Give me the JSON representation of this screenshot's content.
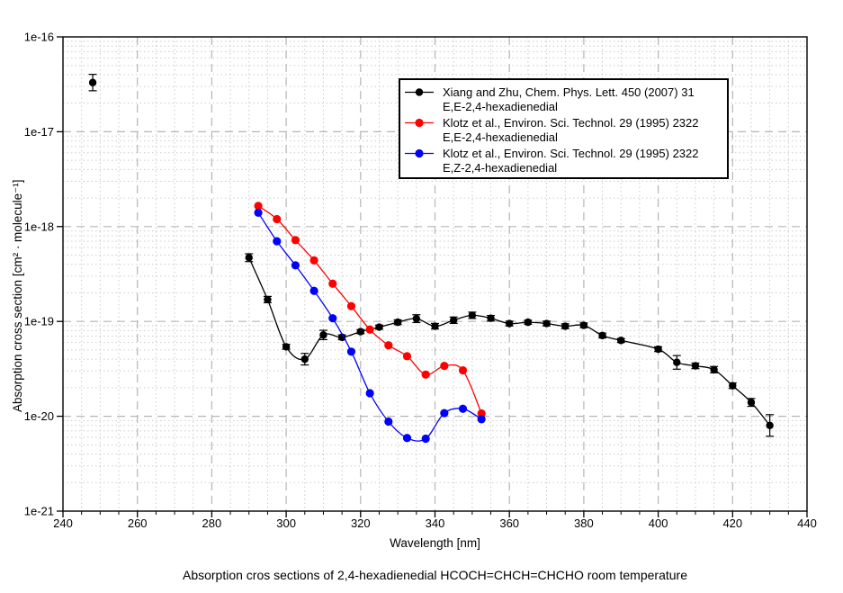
{
  "figure": {
    "title": "Absorption cros sections of 2,4-hexadienedial HCOCH=CHCH=CHCHO room temperature"
  },
  "chart_data": {
    "type": "line",
    "title": "Absorption cros sections of 2,4-hexadienedial HCOCH=CHCH=CHCHO room temperature",
    "xlabel": "Wavelength [nm]",
    "ylabel": "Absorption cross section [cm² · molecule⁻¹]",
    "x_axis": {
      "min": 240,
      "max": 440,
      "major_tick_step": 20,
      "minor_tick_step": 5,
      "tick_labels": [
        "240",
        "260",
        "280",
        "300",
        "320",
        "340",
        "360",
        "380",
        "400",
        "420",
        "440"
      ]
    },
    "y_axis": {
      "scale": "log",
      "min": 1e-21,
      "max": 1e-16,
      "tick_labels": [
        "1e-16",
        "1e-17",
        "1e-18",
        "1e-19",
        "1e-20",
        "1e-21"
      ]
    },
    "grid": {
      "major_color": "#b5b5b5",
      "minor_color": "#cccccc",
      "on": true
    },
    "frame_color": "#000000",
    "legend_position": "top-right-inside",
    "series": [
      {
        "name": "xiang-zhu-ee",
        "legend_line1": "Xiang and Zhu, Chem. Phys. Lett. 450 (2007) 31",
        "legend_line2": "E,E-2,4-hexadienedial",
        "color": "#000000",
        "marker": "circle",
        "marker_radius": 4.2,
        "line_start_index": 1,
        "x": [
          248,
          290,
          295,
          300,
          305,
          310,
          315,
          320,
          325,
          330,
          335,
          340,
          345,
          350,
          355,
          360,
          365,
          370,
          375,
          380,
          385,
          390,
          400,
          405,
          410,
          415,
          420,
          425,
          430
        ],
        "y": [
          3.3e-17,
          4.7e-19,
          1.7e-19,
          5.4e-20,
          4e-20,
          7.2e-20,
          6.8e-20,
          7.8e-20,
          8.7e-20,
          9.8e-20,
          1.07e-19,
          8.9e-20,
          1.03e-19,
          1.16e-19,
          1.08e-19,
          9.5e-20,
          9.8e-20,
          9.5e-20,
          8.9e-20,
          9.1e-20,
          7.1e-20,
          6.3e-20,
          5.1e-20,
          3.7e-20,
          3.4e-20,
          3.1e-20,
          2.1e-20,
          1.4e-20,
          8e-21
        ],
        "yerr_frac": [
          0.22,
          0.1,
          0.08,
          0.06,
          0.15,
          0.12,
          0.06,
          0.05,
          0.05,
          0.06,
          0.1,
          0.07,
          0.08,
          0.08,
          0.07,
          0.06,
          0.05,
          0.06,
          0.06,
          0.06,
          0.06,
          0.05,
          0.06,
          0.18,
          0.07,
          0.08,
          0.07,
          0.1,
          0.3
        ]
      },
      {
        "name": "klotz-ee",
        "legend_line1": "Klotz et al., Environ. Sci. Technol. 29 (1995) 2322",
        "legend_line2": "E,E-2,4-hexadienedial",
        "color": "#ff0000",
        "marker": "circle",
        "marker_radius": 4.6,
        "line_start_index": 0,
        "x": [
          292.5,
          297.5,
          302.5,
          307.5,
          312.5,
          317.5,
          322.5,
          327.5,
          332.5,
          337.5,
          342.5,
          347.5,
          352.5
        ],
        "y": [
          1.65e-18,
          1.2e-18,
          7.2e-19,
          4.4e-19,
          2.5e-19,
          1.45e-19,
          8.2e-20,
          5.6e-20,
          4.3e-20,
          2.75e-20,
          3.4e-20,
          3.05e-20,
          1.07e-20
        ]
      },
      {
        "name": "klotz-ez",
        "legend_line1": "Klotz et al., Environ. Sci. Technol. 29 (1995) 2322",
        "legend_line2": "E,Z-2,4-hexadienedial",
        "color": "#0000ff",
        "marker": "circle",
        "marker_radius": 4.6,
        "line_start_index": 0,
        "x": [
          292.5,
          297.5,
          302.5,
          307.5,
          312.5,
          317.5,
          322.5,
          327.5,
          332.5,
          337.5,
          342.5,
          347.5,
          352.5
        ],
        "y": [
          1.4e-18,
          7e-19,
          3.9e-19,
          2.1e-19,
          1.08e-19,
          4.8e-20,
          1.75e-20,
          8.8e-21,
          5.9e-21,
          5.8e-21,
          1.08e-20,
          1.2e-20,
          9.3e-21
        ]
      }
    ]
  }
}
